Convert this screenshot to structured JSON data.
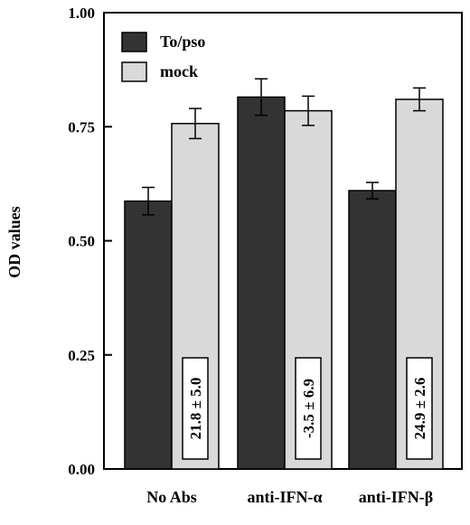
{
  "chart_data": {
    "type": "bar",
    "categories": [
      "No Abs",
      "anti-IFN-α",
      "anti-IFN-β"
    ],
    "series": [
      {
        "name": "To/pso",
        "values": [
          0.587,
          0.815,
          0.61
        ],
        "errors": [
          0.03,
          0.04,
          0.018
        ],
        "color": "#333333"
      },
      {
        "name": "mock",
        "values": [
          0.757,
          0.785,
          0.81
        ],
        "errors": [
          0.033,
          0.032,
          0.025
        ],
        "color": "#d9d9d9"
      }
    ],
    "annotations": [
      "21.8 ± 5.0",
      "-3.5 ± 6.9",
      "24.9 ± 2.6"
    ],
    "ylabel": "OD values",
    "xlabel": "",
    "ylim": [
      0,
      1.0
    ],
    "yticks": [
      "0.00",
      "0.25",
      "0.50",
      "0.75",
      "1.00"
    ],
    "legend_position": "top-left",
    "grid": false
  }
}
